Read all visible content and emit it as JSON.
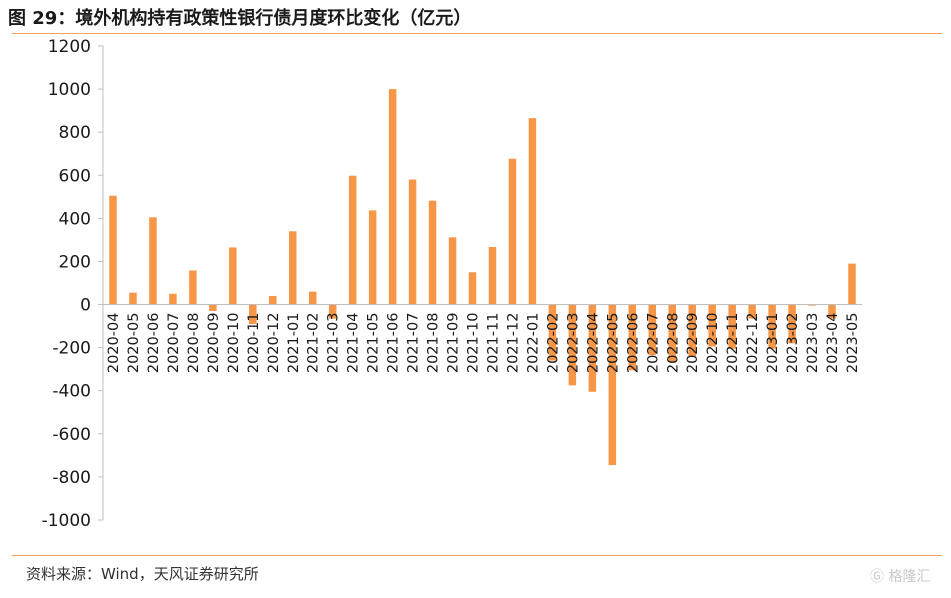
{
  "header": {
    "title": "图 29：境外机构持有政策性银行债月度环比变化（亿元）"
  },
  "footer": {
    "source": "资料来源：Wind，天风证券研究所"
  },
  "watermark": {
    "text": "格隆汇",
    "icon": "logo-icon"
  },
  "colors": {
    "bar": "#f79646",
    "rule": "#f0a060",
    "axis": "#bfbfbf"
  },
  "chart_data": {
    "type": "bar",
    "title": "",
    "xlabel": "",
    "ylabel": "",
    "ylim": [
      -1000,
      1200
    ],
    "yticks": [
      1200,
      1000,
      800,
      600,
      400,
      200,
      0,
      -200,
      -400,
      -600,
      -800,
      -1000
    ],
    "grid": false,
    "legend": "none",
    "categories": [
      "2020-04",
      "2020-05",
      "2020-06",
      "2020-07",
      "2020-08",
      "2020-09",
      "2020-10",
      "2020-11",
      "2020-12",
      "2021-01",
      "2021-02",
      "2021-03",
      "2021-04",
      "2021-05",
      "2021-06",
      "2021-07",
      "2021-08",
      "2021-09",
      "2021-10",
      "2021-11",
      "2021-12",
      "2022-01",
      "2022-02",
      "2022-03",
      "2022-04",
      "2022-05",
      "2022-06",
      "2022-07",
      "2022-08",
      "2022-09",
      "2022-10",
      "2022-11",
      "2022-12",
      "2023-01",
      "2023-02",
      "2023-03",
      "2023-04",
      "2023-05"
    ],
    "values": [
      505,
      55,
      405,
      50,
      158,
      -30,
      265,
      -90,
      40,
      340,
      60,
      -65,
      598,
      437,
      1000,
      580,
      482,
      312,
      150,
      267,
      677,
      865,
      -260,
      -375,
      -405,
      -745,
      -305,
      -235,
      -265,
      -240,
      -195,
      -205,
      -65,
      -205,
      -180,
      -5,
      -65,
      190
    ]
  }
}
